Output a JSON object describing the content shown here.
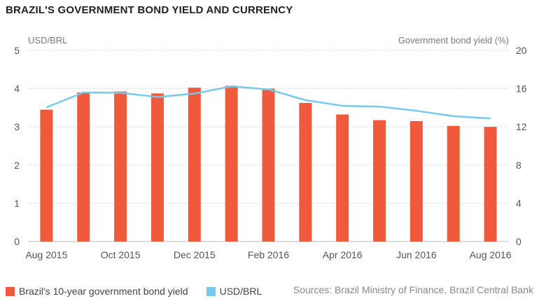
{
  "title": "BRAZIL'S GOVERNMENT BOND YIELD AND CURRENCY",
  "source": "Sources: Brazil Ministry of Finance, Brazil Central Bank",
  "chart_data": {
    "type": "bar",
    "categories": [
      "Aug 2015",
      "Sep 2015",
      "Oct 2015",
      "Nov 2015",
      "Dec 2015",
      "Jan 2016",
      "Feb 2016",
      "Mar 2016",
      "Apr 2016",
      "May 2016",
      "Jun 2016",
      "Jul 2016",
      "Aug 2016"
    ],
    "x_tick_labels": [
      "Aug 2015",
      "Oct 2015",
      "Dec 2015",
      "Feb 2016",
      "Apr 2016",
      "Jun 2016",
      "Aug 2016"
    ],
    "left_axis": {
      "label": "USD/BRL",
      "ylim": [
        0,
        5
      ],
      "ticks": [
        "0",
        "1",
        "2",
        "3",
        "4",
        "5"
      ]
    },
    "right_axis": {
      "label": "Government bond yield (%)",
      "ylim": [
        0,
        20
      ],
      "ticks": [
        "0",
        "4",
        "8",
        "12",
        "16",
        "20"
      ]
    },
    "series": [
      {
        "name": "Brazil's 10-year government bond yield",
        "type": "bar",
        "axis": "right",
        "color": "#f05a3c",
        "values": [
          13.8,
          15.6,
          15.7,
          15.5,
          16.1,
          16.3,
          16.0,
          14.5,
          13.3,
          12.7,
          12.6,
          12.1,
          12.0
        ]
      },
      {
        "name": "USD/BRL",
        "type": "line",
        "axis": "left",
        "color": "#74c9ec",
        "values": [
          3.51,
          3.9,
          3.89,
          3.78,
          3.87,
          4.06,
          3.98,
          3.7,
          3.55,
          3.53,
          3.42,
          3.28,
          3.22
        ]
      }
    ],
    "grid": true,
    "legend_position": "bottom-left"
  }
}
